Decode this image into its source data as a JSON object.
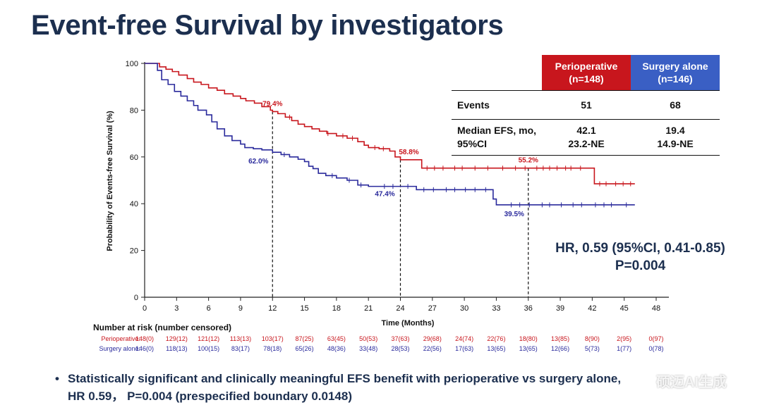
{
  "title": "Event-free Survival by investigators",
  "chart_data": {
    "type": "line",
    "xlabel": "Time (Months)",
    "ylabel": "Probability of Events-free Survival (%)",
    "xlim": [
      0,
      48
    ],
    "ylim": [
      0,
      100
    ],
    "xticks": [
      0,
      3,
      6,
      9,
      12,
      15,
      18,
      21,
      24,
      27,
      30,
      33,
      36,
      39,
      42,
      45,
      48
    ],
    "yticks": [
      0,
      20,
      40,
      60,
      80,
      100
    ],
    "colors": {
      "perioperative": "#c8161d",
      "surgery": "#2a2a9c"
    },
    "series": [
      {
        "name": "Perioperative",
        "color": "#c8161d",
        "points": [
          [
            0,
            100
          ],
          [
            1,
            100
          ],
          [
            1.4,
            98.5
          ],
          [
            2,
            97.5
          ],
          [
            2.6,
            96.5
          ],
          [
            3.2,
            95
          ],
          [
            4,
            93.5
          ],
          [
            4.6,
            92
          ],
          [
            5.3,
            91
          ],
          [
            6,
            89.5
          ],
          [
            6.8,
            88.5
          ],
          [
            7.5,
            87
          ],
          [
            8.3,
            86
          ],
          [
            9,
            85
          ],
          [
            9.5,
            84
          ],
          [
            10.3,
            83
          ],
          [
            11,
            81.5
          ],
          [
            11.8,
            80
          ],
          [
            12,
            79.4
          ],
          [
            12.5,
            78.5
          ],
          [
            13.2,
            77
          ],
          [
            13.8,
            75.5
          ],
          [
            14.4,
            74
          ],
          [
            15,
            73
          ],
          [
            15.7,
            72
          ],
          [
            16.4,
            71
          ],
          [
            17.1,
            70
          ],
          [
            18,
            69
          ],
          [
            19,
            68
          ],
          [
            20,
            66.5
          ],
          [
            20.6,
            65
          ],
          [
            21,
            64
          ],
          [
            22,
            63.5
          ],
          [
            23,
            62.5
          ],
          [
            23.5,
            60
          ],
          [
            24,
            58.8
          ],
          [
            25,
            58.8
          ],
          [
            26,
            55.2
          ],
          [
            36,
            55.2
          ],
          [
            42.2,
            55.2
          ],
          [
            42.2,
            48.5
          ],
          [
            46,
            48.5
          ]
        ],
        "censor_x": [
          13.6,
          17.2,
          18.6,
          19.5,
          21.6,
          22.4,
          26.5,
          27.2,
          28,
          29.1,
          29.8,
          31,
          32.2,
          33.6,
          34.8,
          35.7,
          36.8,
          37.4,
          38,
          38.7,
          39.5,
          40,
          40.9,
          42.7,
          43.3,
          44.2,
          44.9,
          45.6
        ]
      },
      {
        "name": "Surgery alone",
        "color": "#2a2a9c",
        "points": [
          [
            0,
            100
          ],
          [
            1,
            100
          ],
          [
            1.2,
            97
          ],
          [
            1.6,
            93
          ],
          [
            2.2,
            91
          ],
          [
            2.8,
            88
          ],
          [
            3.4,
            86
          ],
          [
            4,
            84
          ],
          [
            4.6,
            82
          ],
          [
            5,
            80
          ],
          [
            5.8,
            78
          ],
          [
            6.3,
            75
          ],
          [
            6.8,
            72
          ],
          [
            7.5,
            69
          ],
          [
            8.2,
            67
          ],
          [
            9,
            65.5
          ],
          [
            9.4,
            64
          ],
          [
            10.2,
            63.5
          ],
          [
            11,
            63
          ],
          [
            12,
            62
          ],
          [
            12.8,
            61
          ],
          [
            13.6,
            60
          ],
          [
            14.4,
            59
          ],
          [
            15,
            58
          ],
          [
            15.4,
            56
          ],
          [
            15.8,
            55
          ],
          [
            16.3,
            53
          ],
          [
            17,
            52
          ],
          [
            18,
            51
          ],
          [
            19,
            50
          ],
          [
            20,
            48
          ],
          [
            21,
            47.4
          ],
          [
            24,
            47.4
          ],
          [
            25.5,
            46
          ],
          [
            32.7,
            46
          ],
          [
            32.7,
            42
          ],
          [
            33,
            39.5
          ],
          [
            46,
            39.5
          ]
        ],
        "censor_x": [
          13.1,
          17.6,
          19.2,
          20.3,
          22.5,
          23.3,
          24.7,
          26.2,
          27.1,
          28.3,
          29.1,
          30.1,
          31,
          32,
          34.4,
          35.2,
          36.1,
          37.3,
          38,
          39.1,
          40.2,
          41,
          42.3,
          43.1,
          43.8,
          45.2
        ]
      }
    ],
    "annotations": [
      {
        "x": 12,
        "y": 79.4,
        "text": "79.4%",
        "series": "Perioperative"
      },
      {
        "x": 12,
        "y": 62.0,
        "text": "62.0%",
        "series": "Surgery alone"
      },
      {
        "x": 24,
        "y": 58.8,
        "text": "58.8%",
        "series": "Perioperative"
      },
      {
        "x": 24,
        "y": 47.4,
        "text": "47.4%",
        "series": "Surgery alone"
      },
      {
        "x": 36,
        "y": 55.2,
        "text": "55.2%",
        "series": "Perioperative"
      },
      {
        "x": 36,
        "y": 39.5,
        "text": "39.5%",
        "series": "Surgery alone"
      }
    ],
    "reference_lines_x": [
      12,
      24,
      36
    ],
    "risk_table": {
      "title": "Number at risk (number censored)",
      "rows": [
        {
          "label": "Perioperative:",
          "color": "#c8161d",
          "values": [
            "148(0)",
            "129(12)",
            "121(12)",
            "113(13)",
            "103(17)",
            "87(25)",
            "63(45)",
            "50(53)",
            "37(63)",
            "29(68)",
            "24(74)",
            "22(76)",
            "18(80)",
            "13(85)",
            "8(90)",
            "2(95)",
            "0(97)"
          ]
        },
        {
          "label": "Surgery alone:",
          "color": "#2a2a9c",
          "values": [
            "146(0)",
            "118(13)",
            "100(15)",
            "83(17)",
            "78(18)",
            "65(26)",
            "48(36)",
            "33(48)",
            "28(53)",
            "22(56)",
            "17(63)",
            "13(65)",
            "13(65)",
            "12(66)",
            "5(73)",
            "1(77)",
            "0(78)"
          ]
        }
      ]
    }
  },
  "summary_table": {
    "col1_name": "Perioperative",
    "col1_n": "(n=148)",
    "col2_name": "Surgery alone",
    "col2_n": "(n=146)",
    "rows": [
      {
        "label": "Events",
        "v1": "51",
        "v2": "68"
      },
      {
        "label_line1": "Median EFS, mo,",
        "label_line2": "95%CI",
        "v1_line1": "42.1",
        "v1_line2": "23.2-NE",
        "v2_line1": "19.4",
        "v2_line2": "14.9-NE"
      }
    ]
  },
  "hr": {
    "line1": "HR, 0.59 (95%CI, 0.41-0.85)",
    "line2": "P=0.004"
  },
  "bullet": {
    "line1": "Statistically significant and clinically meaningful EFS benefit with perioperative vs surgery alone,",
    "line2": "HR 0.59， P=0.004 (prespecified boundary 0.0148)"
  },
  "watermark": "硕迈AI生成"
}
